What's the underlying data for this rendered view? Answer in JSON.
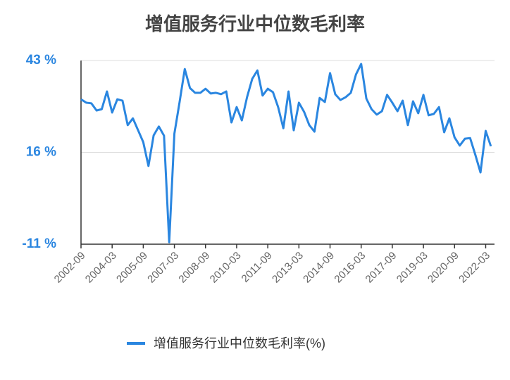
{
  "chart_data": {
    "type": "line",
    "title": "增值服务行业中位数毛利率",
    "categories": [
      "2002-09",
      null,
      null,
      null,
      null,
      null,
      "2004-03",
      null,
      null,
      null,
      null,
      null,
      "2005-09",
      null,
      null,
      null,
      null,
      null,
      "2007-03",
      null,
      null,
      null,
      null,
      null,
      "2008-09",
      null,
      null,
      null,
      null,
      null,
      "2010-03",
      null,
      null,
      null,
      null,
      null,
      "2011-09",
      null,
      null,
      null,
      null,
      null,
      "2013-03",
      null,
      null,
      null,
      null,
      null,
      "2014-09",
      null,
      null,
      null,
      null,
      null,
      "2016-03",
      null,
      null,
      null,
      null,
      null,
      "2017-09",
      null,
      null,
      null,
      null,
      null,
      "2019-03",
      null,
      null,
      null,
      null,
      null,
      "2020-09",
      null,
      null,
      null,
      null,
      null,
      "2022-03",
      null
    ],
    "series": [
      {
        "name": "增值服务行业中位数毛利率(%)",
        "color": "#2a86e0",
        "values": [
          31.6,
          30.6,
          30.4,
          28.3,
          28.7,
          33.9,
          27.7,
          31.6,
          31.2,
          24,
          26,
          22.5,
          19,
          12,
          21,
          23.6,
          20.9,
          -10.4,
          21.5,
          30.8,
          40.5,
          34.9,
          33.5,
          33.5,
          34.7,
          33.3,
          33.5,
          33.1,
          33.9,
          24.8,
          29.3,
          25.4,
          32.2,
          37.6,
          40.1,
          32.7,
          34.7,
          33.7,
          29.3,
          23.1,
          33.9,
          22.5,
          30.6,
          27.9,
          24,
          22.1,
          32,
          30.8,
          39.3,
          33.1,
          31.4,
          32.2,
          33.5,
          38.9,
          42,
          31.8,
          28.7,
          27.1,
          28.1,
          32.9,
          30.6,
          28.1,
          31.2,
          24,
          31,
          27.5,
          32.9,
          26.9,
          27.3,
          29.3,
          21.9,
          26,
          20.4,
          18,
          20,
          20.2,
          15.3,
          10.1,
          22.3,
          17.8
        ]
      }
    ],
    "ylim": [
      -11,
      43
    ],
    "yticks": [
      {
        "value": -11,
        "label": "-11 %"
      },
      {
        "value": 16,
        "label": "16 %"
      },
      {
        "value": 43,
        "label": "43 %"
      }
    ],
    "grid": true
  }
}
